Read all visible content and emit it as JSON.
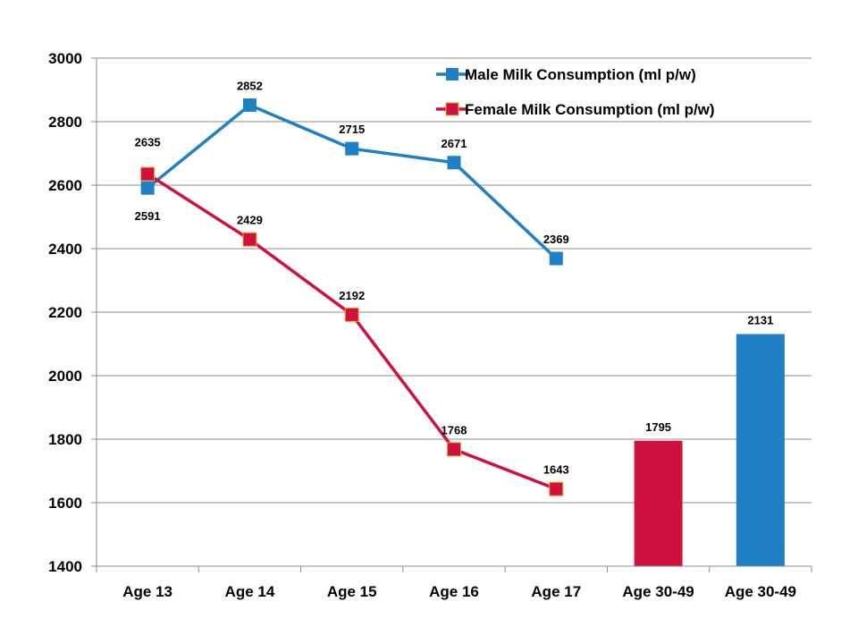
{
  "chart_data": {
    "type": "line",
    "categories": [
      "Age 13",
      "Age 14",
      "Age 15",
      "Age 16",
      "Age 17",
      "Age 30-49",
      "Age 30-49"
    ],
    "ylim": [
      1400,
      3000
    ],
    "yticks": [
      1400,
      1600,
      1800,
      2000,
      2200,
      2400,
      2600,
      2800,
      3000
    ],
    "grid": true,
    "legend_position": "top-right",
    "series": [
      {
        "name": "Male Milk Consumption (ml p/w)",
        "type": "line",
        "color": "#1f7fc7",
        "values": [
          2591,
          2852,
          2715,
          2671,
          2369,
          null,
          null
        ]
      },
      {
        "name": "Female Milk Consumption (ml p/w)",
        "type": "line",
        "color": "#d0103f",
        "values": [
          2635,
          2429,
          2192,
          1768,
          1643,
          null,
          null
        ]
      }
    ],
    "bars": [
      {
        "category_index": 5,
        "value": 1795,
        "color": "#d0103f"
      },
      {
        "category_index": 6,
        "value": 2131,
        "color": "#1f7fc7"
      }
    ]
  }
}
